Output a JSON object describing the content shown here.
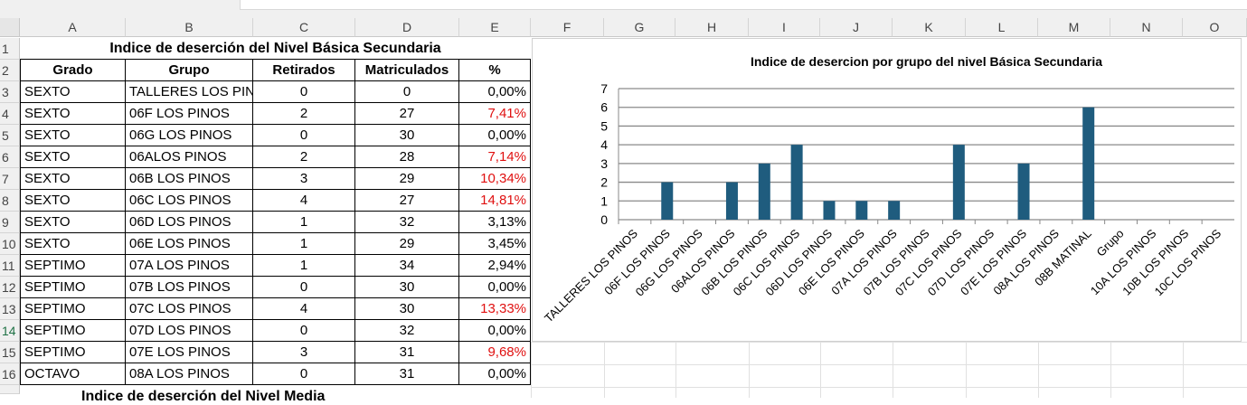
{
  "columns": [
    "A",
    "B",
    "C",
    "D",
    "E",
    "F",
    "G",
    "H",
    "I",
    "J",
    "K",
    "L",
    "M",
    "N",
    "O"
  ],
  "rows": [
    "1",
    "2",
    "3",
    "4",
    "5",
    "6",
    "7",
    "8",
    "9",
    "10",
    "11",
    "12",
    "13",
    "14",
    "15",
    "16"
  ],
  "sheet_title": "Indice de deserción del Nivel Básica Secundaria",
  "table_headers": [
    "Grado",
    "Grupo",
    "Retirados",
    "Matriculados",
    "%"
  ],
  "table_rows": [
    {
      "grado": "SEXTO",
      "grupo": "TALLERES LOS PINOS",
      "retirados": "0",
      "matriculados": "0",
      "pct": "0,00%",
      "red": false
    },
    {
      "grado": "SEXTO",
      "grupo": "06F LOS PINOS",
      "retirados": "2",
      "matriculados": "27",
      "pct": "7,41%",
      "red": true
    },
    {
      "grado": "SEXTO",
      "grupo": "06G LOS PINOS",
      "retirados": "0",
      "matriculados": "30",
      "pct": "0,00%",
      "red": false
    },
    {
      "grado": "SEXTO",
      "grupo": "06ALOS PINOS",
      "retirados": "2",
      "matriculados": "28",
      "pct": "7,14%",
      "red": true
    },
    {
      "grado": "SEXTO",
      "grupo": "06B LOS PINOS",
      "retirados": "3",
      "matriculados": "29",
      "pct": "10,34%",
      "red": true
    },
    {
      "grado": "SEXTO",
      "grupo": "06C LOS PINOS",
      "retirados": "4",
      "matriculados": "27",
      "pct": "14,81%",
      "red": true
    },
    {
      "grado": "SEXTO",
      "grupo": "06D LOS PINOS",
      "retirados": "1",
      "matriculados": "32",
      "pct": "3,13%",
      "red": false
    },
    {
      "grado": "SEXTO",
      "grupo": "06E LOS PINOS",
      "retirados": "1",
      "matriculados": "29",
      "pct": "3,45%",
      "red": false
    },
    {
      "grado": "SEPTIMO",
      "grupo": "07A LOS PINOS",
      "retirados": "1",
      "matriculados": "34",
      "pct": "2,94%",
      "red": false
    },
    {
      "grado": "SEPTIMO",
      "grupo": "07B LOS PINOS",
      "retirados": "0",
      "matriculados": "30",
      "pct": "0,00%",
      "red": false
    },
    {
      "grado": "SEPTIMO",
      "grupo": "07C  LOS PINOS",
      "retirados": "4",
      "matriculados": "30",
      "pct": "13,33%",
      "red": true
    },
    {
      "grado": "SEPTIMO",
      "grupo": "07D  LOS PINOS",
      "retirados": "0",
      "matriculados": "32",
      "pct": "0,00%",
      "red": false
    },
    {
      "grado": "SEPTIMO",
      "grupo": "07E  LOS PINOS",
      "retirados": "3",
      "matriculados": "31",
      "pct": "9,68%",
      "red": true
    },
    {
      "grado": "OCTAVO",
      "grupo": "08A  LOS PINOS",
      "retirados": "0",
      "matriculados": "31",
      "pct": "0,00%",
      "red": false
    }
  ],
  "cut_off_text": "Indice de deserción del Nivel Media",
  "colors": {
    "bar": "#1f5c7e",
    "red_text": "#e01010",
    "active_row": "#1e7145"
  },
  "chart_data": {
    "type": "bar",
    "title": "Indice de desercion por grupo del nivel Básica Secundaria",
    "categories": [
      "TALLERES LOS PINOS",
      "06F LOS PINOS",
      "06G LOS PINOS",
      "06ALOS PINOS",
      "06B LOS PINOS",
      "06C LOS PINOS",
      "06D LOS PINOS",
      "06E LOS PINOS",
      "07A LOS PINOS",
      "07B LOS PINOS",
      "07C  LOS PINOS",
      "07D  LOS PINOS",
      "07E  LOS PINOS",
      "08A  LOS PINOS",
      "08B MATINAL",
      "Grupo",
      "10A  LOS PINOS",
      "10B  LOS PINOS",
      "10C  LOS PINOS"
    ],
    "values": [
      0,
      2,
      0,
      2,
      3,
      4,
      1,
      1,
      1,
      0,
      4,
      0,
      3,
      0,
      6,
      0,
      0,
      0,
      0
    ],
    "yticks": [
      "0",
      "1",
      "2",
      "3",
      "4",
      "5",
      "6",
      "7"
    ],
    "ylim": [
      0,
      7
    ],
    "grid": true,
    "legend": "none"
  }
}
